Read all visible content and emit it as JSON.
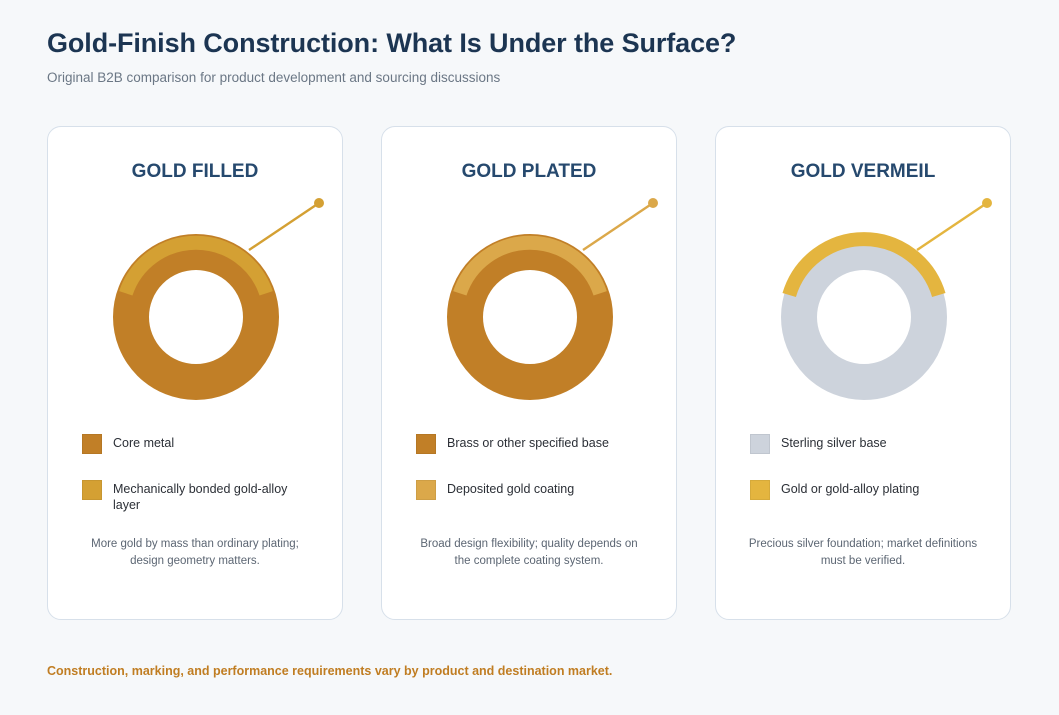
{
  "header": {
    "title": "Gold-Finish Construction: What Is Under the Surface?",
    "subtitle": "Original B2B comparison for product development and sourcing discussions"
  },
  "cards": [
    {
      "title": "GOLD FILLED",
      "legend": [
        {
          "label": "Core metal",
          "color": "#c17f27"
        },
        {
          "label": "Mechanically bonded gold-alloy layer",
          "color": "#d4a033"
        }
      ],
      "note": "More gold by mass than ordinary plating; design geometry matters."
    },
    {
      "title": "GOLD PLATED",
      "legend": [
        {
          "label": "Brass or other specified base",
          "color": "#c17f27"
        },
        {
          "label": "Deposited gold coating",
          "color": "#dba84a"
        }
      ],
      "note": "Broad design flexibility; quality depends on the complete coating system."
    },
    {
      "title": "GOLD VERMEIL",
      "legend": [
        {
          "label": "Sterling silver base",
          "color": "#cdd3dc"
        },
        {
          "label": "Gold or gold-alloy plating",
          "color": "#e4b53f"
        }
      ],
      "note": "Precious silver foundation; market definitions must be verified."
    }
  ],
  "footer": {
    "text": "Construction, marking, and performance requirements vary by product and destination market."
  }
}
